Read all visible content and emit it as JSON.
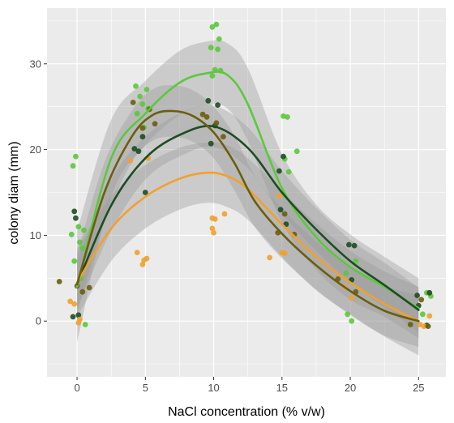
{
  "chart_data": {
    "type": "scatter",
    "title": "",
    "xlabel": "NaCl concentration (% v/w)",
    "ylabel": "colony diam (mm)",
    "xlim": [
      -2.2,
      27.0
    ],
    "ylim": [
      -6.5,
      36.5
    ],
    "x_ticks": [
      0,
      5,
      10,
      15,
      20,
      25
    ],
    "y_ticks": [
      0,
      10,
      20,
      30
    ],
    "grid": true,
    "legend": "none",
    "panel_background": "#ebebeb",
    "grid_color": "#ffffff",
    "ribbon_color": "#999999",
    "series": [
      {
        "color": "#5cc83d",
        "curve": [
          [
            0,
            4
          ],
          [
            2.5,
            19
          ],
          [
            5,
            24.2
          ],
          [
            7.5,
            27.8
          ],
          [
            9.5,
            28.9
          ],
          [
            11,
            28.7
          ],
          [
            12.5,
            25.3
          ],
          [
            15,
            15.5
          ],
          [
            17.5,
            9.8
          ],
          [
            20,
            6.3
          ],
          [
            22.5,
            4
          ],
          [
            25,
            1.5
          ]
        ],
        "ribbon_low": [
          [
            0,
            -2.5
          ],
          [
            2.5,
            14.5
          ],
          [
            5,
            20.5
          ],
          [
            7.5,
            24
          ],
          [
            9.5,
            25.2
          ],
          [
            11,
            24.8
          ],
          [
            12.5,
            21
          ],
          [
            15,
            11.5
          ],
          [
            17.5,
            6
          ],
          [
            20,
            2.5
          ],
          [
            22.5,
            0.5
          ],
          [
            25,
            -2
          ]
        ],
        "ribbon_high": [
          [
            0,
            10.5
          ],
          [
            2.5,
            23.5
          ],
          [
            5,
            28
          ],
          [
            7.5,
            31.5
          ],
          [
            9.5,
            32.6
          ],
          [
            11,
            32.4
          ],
          [
            12.5,
            29.5
          ],
          [
            15,
            19.5
          ],
          [
            17.5,
            13.6
          ],
          [
            20,
            10.1
          ],
          [
            22.5,
            7.5
          ],
          [
            25,
            5
          ]
        ],
        "points": [
          [
            -0.3,
            18.1
          ],
          [
            -0.1,
            19.2
          ],
          [
            -0.4,
            10.1
          ],
          [
            0.1,
            11
          ],
          [
            0.2,
            9.2
          ],
          [
            0.5,
            10.6
          ],
          [
            -0.2,
            7
          ],
          [
            0.3,
            5
          ],
          [
            0.6,
            -0.4
          ],
          [
            0.4,
            8.5
          ],
          [
            4.3,
            27.4
          ],
          [
            4.6,
            26.2
          ],
          [
            5.1,
            27
          ],
          [
            4.8,
            25.3
          ],
          [
            5.2,
            24.8
          ],
          [
            4.4,
            24.2
          ],
          [
            4.9,
            22.6
          ],
          [
            9.9,
            34.3
          ],
          [
            10.2,
            34.6
          ],
          [
            10.4,
            32.9
          ],
          [
            9.8,
            31.9
          ],
          [
            10.3,
            31.7
          ],
          [
            10.1,
            29.3
          ],
          [
            9.9,
            28.6
          ],
          [
            10.5,
            29.2
          ],
          [
            15.1,
            23.9
          ],
          [
            15.4,
            23.8
          ],
          [
            16.1,
            19.8
          ],
          [
            15.2,
            18.9
          ],
          [
            15.5,
            17.4
          ],
          [
            19.8,
            0.8
          ],
          [
            20.1,
            0
          ],
          [
            20.4,
            7
          ],
          [
            19.7,
            5.6
          ],
          [
            24.9,
            1.6
          ],
          [
            25.6,
            3.3
          ],
          [
            25.9,
            2.9
          ],
          [
            25.3,
            0.8
          ]
        ]
      },
      {
        "color": "#1e4d22",
        "curve": [
          [
            0,
            4.3
          ],
          [
            2.5,
            13.5
          ],
          [
            5,
            19
          ],
          [
            7.5,
            21.7
          ],
          [
            10,
            22.7
          ],
          [
            12.5,
            20.2
          ],
          [
            15,
            15
          ],
          [
            17.5,
            10.7
          ],
          [
            20,
            7
          ],
          [
            22.5,
            4.2
          ],
          [
            25,
            1.3
          ]
        ],
        "ribbon_low": [
          [
            0,
            1.5
          ],
          [
            2.5,
            10.5
          ],
          [
            5,
            16.5
          ],
          [
            7.5,
            19.2
          ],
          [
            10,
            20.3
          ],
          [
            12.5,
            17.8
          ],
          [
            15,
            12.5
          ],
          [
            17.5,
            8.2
          ],
          [
            20,
            4.5
          ],
          [
            22.5,
            1.6
          ],
          [
            25,
            -1.3
          ]
        ],
        "ribbon_high": [
          [
            0,
            7.1
          ],
          [
            2.5,
            16.5
          ],
          [
            5,
            21.5
          ],
          [
            7.5,
            24.2
          ],
          [
            10,
            25.1
          ],
          [
            12.5,
            22.6
          ],
          [
            15,
            17.5
          ],
          [
            17.5,
            13.2
          ],
          [
            20,
            9.5
          ],
          [
            22.5,
            6.8
          ],
          [
            25,
            3.9
          ]
        ],
        "points": [
          [
            -0.2,
            12.8
          ],
          [
            -0.1,
            12
          ],
          [
            0.1,
            0.7
          ],
          [
            -0.3,
            0.5
          ],
          [
            4.2,
            20.1
          ],
          [
            4.5,
            19.8
          ],
          [
            5,
            15
          ],
          [
            4.8,
            21.5
          ],
          [
            9.6,
            25.7
          ],
          [
            10.3,
            25.2
          ],
          [
            9.8,
            20.7
          ],
          [
            10.1,
            22.8
          ],
          [
            14.8,
            17.5
          ],
          [
            15.1,
            19.2
          ],
          [
            15.3,
            11.3
          ],
          [
            14.9,
            13
          ],
          [
            19.9,
            8.9
          ],
          [
            20.3,
            8.8
          ],
          [
            20.1,
            4.8
          ],
          [
            24.9,
            3
          ],
          [
            25.8,
            3.3
          ],
          [
            25.6,
            -0.5
          ],
          [
            25,
            1.8
          ]
        ]
      },
      {
        "color": "#f0a130",
        "curve": [
          [
            0,
            4.5
          ],
          [
            2.5,
            10.8
          ],
          [
            5,
            14.5
          ],
          [
            7.5,
            16.6
          ],
          [
            9.5,
            17.3
          ],
          [
            11,
            16.9
          ],
          [
            12.5,
            15.4
          ],
          [
            15,
            11.3
          ],
          [
            17.5,
            7.5
          ],
          [
            20,
            4.5
          ],
          [
            22.5,
            2
          ],
          [
            25,
            0
          ]
        ],
        "ribbon_low": [
          [
            0,
            0.5
          ],
          [
            2.5,
            7
          ],
          [
            5,
            10.8
          ],
          [
            7.5,
            13
          ],
          [
            9.5,
            13.8
          ],
          [
            11,
            13.3
          ],
          [
            12.5,
            11.8
          ],
          [
            15,
            7.5
          ],
          [
            17.5,
            3.6
          ],
          [
            20,
            0.8
          ],
          [
            22.5,
            -1.8
          ],
          [
            25,
            -4
          ]
        ],
        "ribbon_high": [
          [
            0,
            8.5
          ],
          [
            2.5,
            14.6
          ],
          [
            5,
            18.2
          ],
          [
            7.5,
            20.2
          ],
          [
            9.5,
            20.8
          ],
          [
            11,
            20.5
          ],
          [
            12.5,
            19
          ],
          [
            15,
            15.1
          ],
          [
            17.5,
            11.4
          ],
          [
            20,
            8.2
          ],
          [
            22.5,
            5.8
          ],
          [
            25,
            4
          ]
        ],
        "points": [
          [
            -0.5,
            2.3
          ],
          [
            -0.2,
            2
          ],
          [
            0.2,
            0.2
          ],
          [
            0.1,
            -0.2
          ],
          [
            4.4,
            8
          ],
          [
            4.9,
            7.1
          ],
          [
            5.1,
            7.3
          ],
          [
            4.8,
            6.6
          ],
          [
            3.9,
            18.7
          ],
          [
            5.2,
            19
          ],
          [
            9.9,
            12
          ],
          [
            10.1,
            11.9
          ],
          [
            9.9,
            10.8
          ],
          [
            10,
            10.3
          ],
          [
            10.8,
            12.5
          ],
          [
            14.1,
            7.4
          ],
          [
            15,
            8
          ],
          [
            15.2,
            7.9
          ],
          [
            14.8,
            14.6
          ],
          [
            20.1,
            2.7
          ],
          [
            19.6,
            4
          ],
          [
            25.1,
            -0.4
          ],
          [
            25.8,
            0.6
          ],
          [
            25.4,
            -0.6
          ]
        ]
      },
      {
        "color": "#6b5e10",
        "curve": [
          [
            0,
            4.3
          ],
          [
            2,
            15
          ],
          [
            4,
            21.5
          ],
          [
            5.5,
            24
          ],
          [
            7,
            24.5
          ],
          [
            8.5,
            23.9
          ],
          [
            10,
            22
          ],
          [
            11.5,
            18.5
          ],
          [
            13,
            14
          ],
          [
            15,
            10.2
          ],
          [
            17.5,
            6.5
          ],
          [
            20,
            3.5
          ],
          [
            22.5,
            1.2
          ],
          [
            25,
            0
          ]
        ],
        "ribbon_low": [
          [
            0,
            0.8
          ],
          [
            2,
            11.5
          ],
          [
            4,
            18.5
          ],
          [
            5.5,
            21
          ],
          [
            7,
            21.5
          ],
          [
            8.5,
            20.9
          ],
          [
            10,
            19
          ],
          [
            11.5,
            15.3
          ],
          [
            13,
            11
          ],
          [
            15,
            7.3
          ],
          [
            17.5,
            3.7
          ],
          [
            20,
            0.7
          ],
          [
            22.5,
            -1.7
          ],
          [
            25,
            -3
          ]
        ],
        "ribbon_high": [
          [
            0,
            7.8
          ],
          [
            2,
            18.5
          ],
          [
            4,
            24.5
          ],
          [
            5.5,
            27
          ],
          [
            7,
            27.5
          ],
          [
            8.5,
            26.9
          ],
          [
            10,
            25
          ],
          [
            11.5,
            21.7
          ],
          [
            13,
            17
          ],
          [
            15,
            13.1
          ],
          [
            17.5,
            9.3
          ],
          [
            20,
            6.3
          ],
          [
            22.5,
            4.1
          ],
          [
            25,
            3
          ]
        ],
        "points": [
          [
            -1.3,
            4.6
          ],
          [
            0,
            4.1
          ],
          [
            0.4,
            3.4
          ],
          [
            0.9,
            3.9
          ],
          [
            4.8,
            22.5
          ],
          [
            5.3,
            24.7
          ],
          [
            4.1,
            25.5
          ],
          [
            5.7,
            23
          ],
          [
            9.2,
            24.1
          ],
          [
            9.5,
            23.8
          ],
          [
            10.2,
            23.1
          ],
          [
            10.7,
            21.5
          ],
          [
            14.7,
            10.3
          ],
          [
            15.2,
            12.5
          ],
          [
            15.9,
            10.1
          ],
          [
            19.1,
            4.9
          ],
          [
            20.4,
            3.4
          ],
          [
            24.4,
            -0.4
          ],
          [
            25.2,
            2.5
          ],
          [
            25.7,
            -0.6
          ]
        ]
      }
    ]
  }
}
